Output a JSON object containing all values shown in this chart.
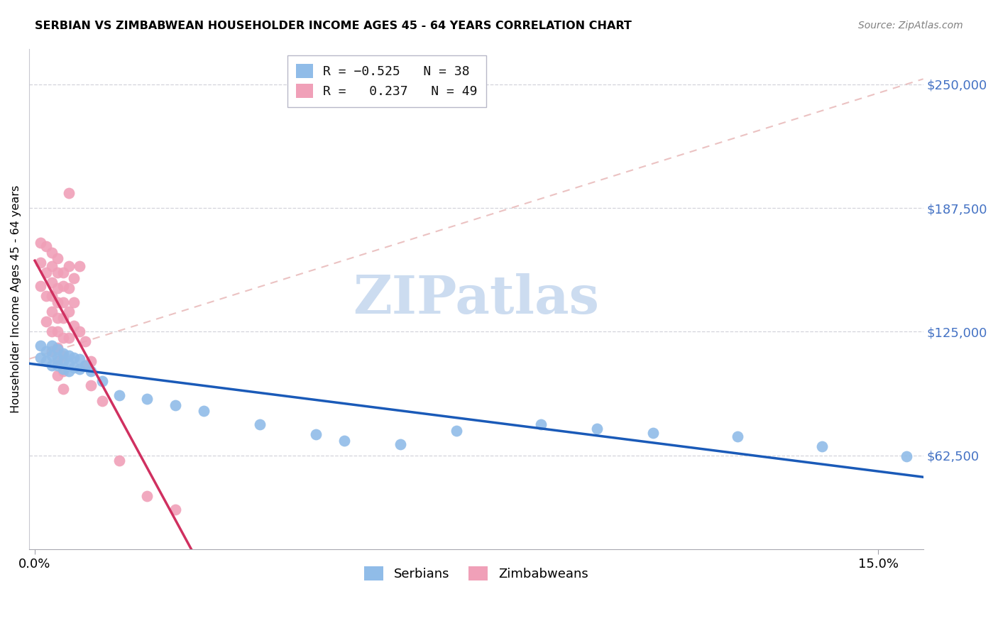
{
  "title": "SERBIAN VS ZIMBABWEAN HOUSEHOLDER INCOME AGES 45 - 64 YEARS CORRELATION CHART",
  "source": "Source: ZipAtlas.com",
  "ylabel": "Householder Income Ages 45 - 64 years",
  "ytick_labels": [
    "$62,500",
    "$125,000",
    "$187,500",
    "$250,000"
  ],
  "ytick_values": [
    62500,
    125000,
    187500,
    250000
  ],
  "ymin": 15000,
  "ymax": 268000,
  "xmin": -0.001,
  "xmax": 0.158,
  "xlabel_ticks": [
    0.0,
    0.15
  ],
  "xlabel_labels": [
    "0.0%",
    "15.0%"
  ],
  "serbian_r": -0.525,
  "serbian_n": 38,
  "zimbabwean_r": 0.237,
  "zimbabwean_n": 49,
  "serbian_color": "#90bce8",
  "zimbabwean_color": "#f0a0b8",
  "serbian_line_color": "#1a5ab8",
  "zimbabwean_line_color": "#d03060",
  "dashed_line_color": "#e8b8b8",
  "watermark_text": "ZIPatlas",
  "watermark_color": "#ccdcf0",
  "grid_color": "#d0d0d8",
  "serbian_data_x": [
    0.001,
    0.001,
    0.002,
    0.002,
    0.003,
    0.003,
    0.003,
    0.004,
    0.004,
    0.004,
    0.005,
    0.005,
    0.005,
    0.006,
    0.006,
    0.006,
    0.007,
    0.007,
    0.008,
    0.008,
    0.009,
    0.01,
    0.012,
    0.015,
    0.02,
    0.025,
    0.03,
    0.04,
    0.05,
    0.055,
    0.065,
    0.075,
    0.09,
    0.1,
    0.11,
    0.125,
    0.14,
    0.155
  ],
  "serbian_data_y": [
    118000,
    112000,
    115000,
    110000,
    118000,
    113000,
    108000,
    116000,
    112000,
    108000,
    114000,
    110000,
    106000,
    113000,
    109000,
    105000,
    112000,
    107000,
    111000,
    106000,
    108000,
    105000,
    100000,
    93000,
    91000,
    88000,
    85000,
    78000,
    73000,
    70000,
    68000,
    75000,
    78000,
    76000,
    74000,
    72000,
    67000,
    62000
  ],
  "zimbabwean_data_x": [
    0.001,
    0.001,
    0.001,
    0.002,
    0.002,
    0.002,
    0.002,
    0.003,
    0.003,
    0.003,
    0.003,
    0.003,
    0.003,
    0.003,
    0.004,
    0.004,
    0.004,
    0.004,
    0.004,
    0.004,
    0.004,
    0.004,
    0.004,
    0.005,
    0.005,
    0.005,
    0.005,
    0.005,
    0.005,
    0.005,
    0.005,
    0.006,
    0.006,
    0.006,
    0.006,
    0.006,
    0.007,
    0.007,
    0.007,
    0.008,
    0.008,
    0.009,
    0.009,
    0.01,
    0.01,
    0.012,
    0.015,
    0.02,
    0.025
  ],
  "zimbabwean_data_y": [
    170000,
    160000,
    148000,
    168000,
    155000,
    143000,
    130000,
    165000,
    158000,
    150000,
    143000,
    135000,
    125000,
    115000,
    162000,
    155000,
    147000,
    140000,
    132000,
    125000,
    117000,
    110000,
    103000,
    155000,
    148000,
    140000,
    132000,
    122000,
    113000,
    105000,
    96000,
    195000,
    158000,
    147000,
    135000,
    122000,
    152000,
    140000,
    128000,
    158000,
    125000,
    120000,
    108000,
    110000,
    98000,
    90000,
    60000,
    42000,
    35000
  ],
  "pink_line_x": [
    0.001,
    0.025
  ],
  "pink_line_y": [
    113000,
    148000
  ],
  "dashed_line_x": [
    0.001,
    0.155
  ],
  "dashed_line_y": [
    113000,
    250000
  ]
}
